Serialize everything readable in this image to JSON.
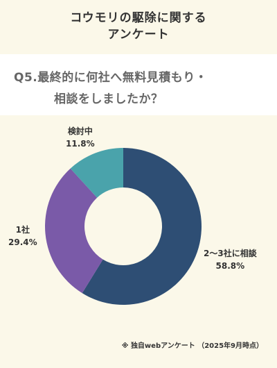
{
  "header": {
    "title_line1": "コウモリの駆除に関する",
    "title_line2": "アンケート"
  },
  "question": {
    "line1": "Q5.最終的に何社へ無料見積もり・",
    "line2": "相談をしましたか？"
  },
  "chart_data": {
    "type": "pie",
    "donut": true,
    "categories": [
      "2〜3社に相談",
      "1社",
      "検討中"
    ],
    "values": [
      58.8,
      29.4,
      11.8
    ],
    "value_labels": [
      "58.8%",
      "29.4%",
      "11.8%"
    ],
    "colors": [
      "#2e4e74",
      "#7a5aa8",
      "#4aa3ab"
    ]
  },
  "footnote": "※ 独自webアンケート （2025年9月時点）"
}
